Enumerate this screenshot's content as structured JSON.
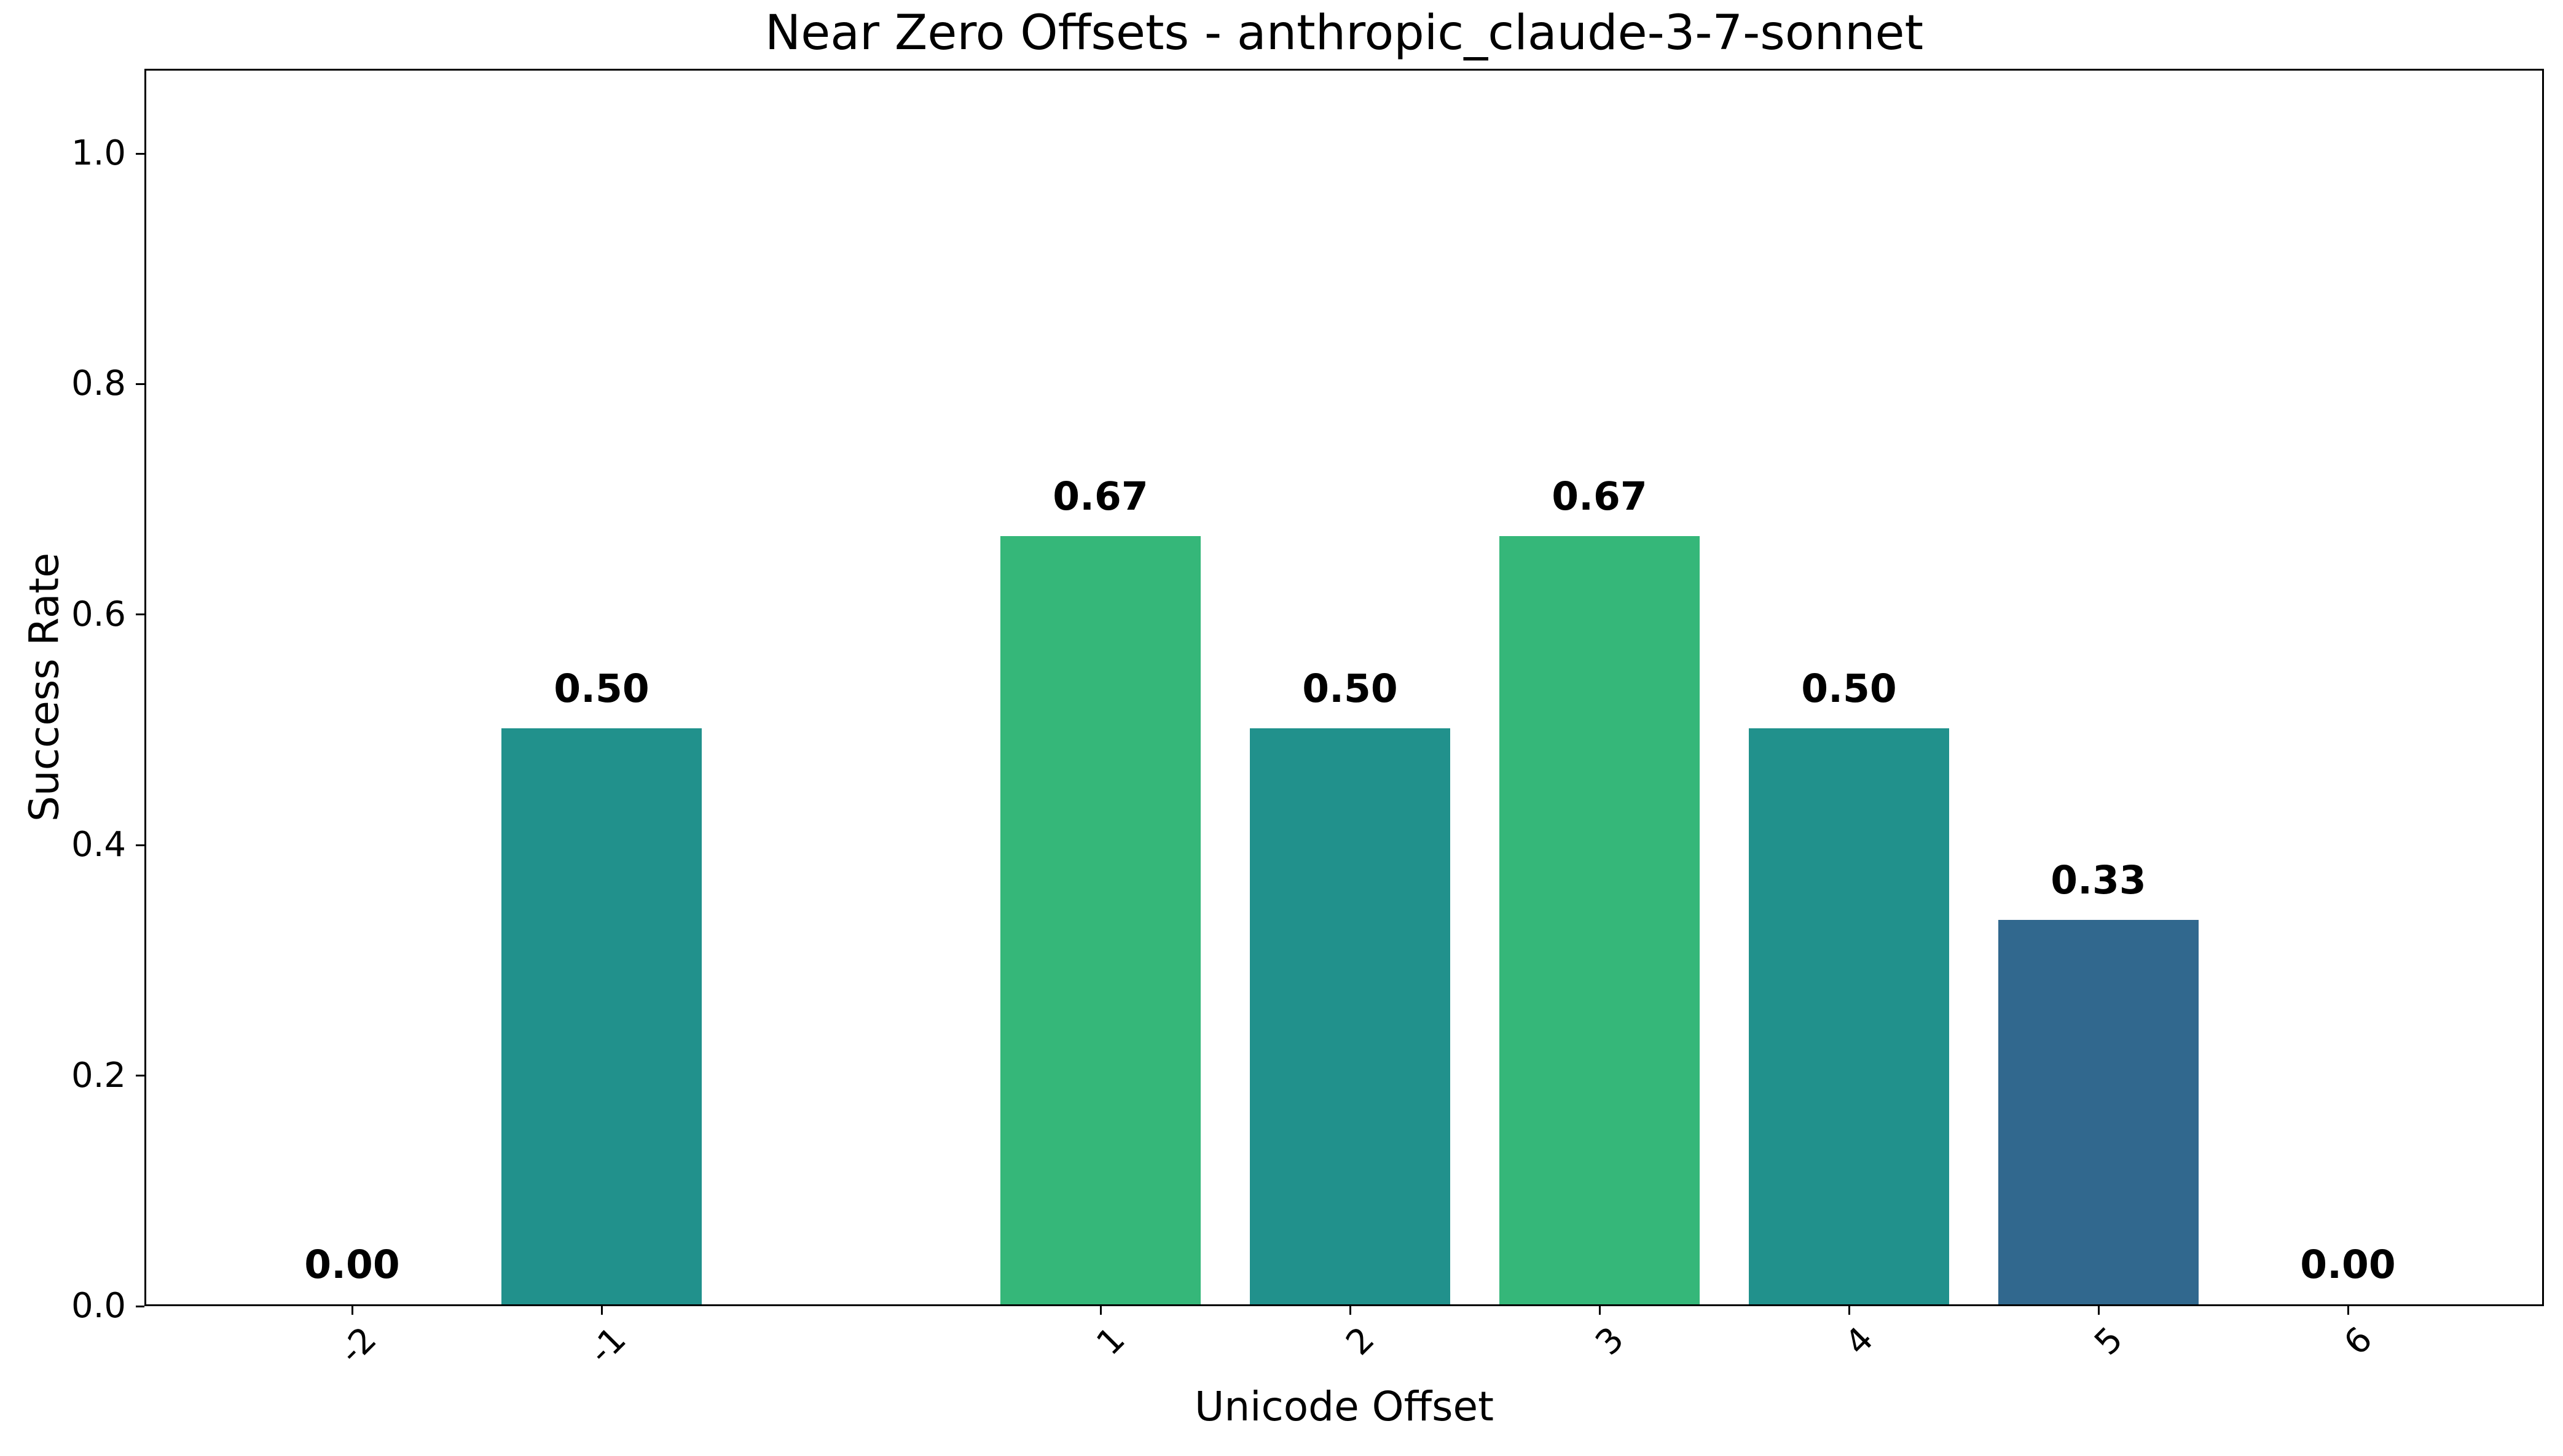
{
  "figure": {
    "background": "#ffffff",
    "spine_color": "#000000",
    "text_color": "#000000"
  },
  "chart_data": {
    "type": "bar",
    "title": "Near Zero Offsets - anthropic_claude-3-7-sonnet",
    "xlabel": "Unicode Offset",
    "ylabel": "Success Rate",
    "categories": [
      "-2",
      "-1",
      "1",
      "2",
      "3",
      "4",
      "5",
      "6"
    ],
    "x_positions": [
      -2,
      -1,
      1,
      2,
      3,
      4,
      5,
      6
    ],
    "values": [
      0.0,
      0.5,
      0.6667,
      0.5,
      0.6667,
      0.5,
      0.3333,
      0.0
    ],
    "bar_labels": [
      "0.00",
      "0.50",
      "0.67",
      "0.50",
      "0.67",
      "0.50",
      "0.33",
      "0.00"
    ],
    "bar_colors": [
      "none",
      "#21918c",
      "#35b779",
      "#21918c",
      "#35b779",
      "#21918c",
      "#31688e",
      "none"
    ],
    "ylim": [
      0.0,
      1.07
    ],
    "yticks": [
      0.0,
      0.2,
      0.4,
      0.6,
      0.8,
      1.0
    ],
    "ytick_labels": [
      "0.0",
      "0.2",
      "0.4",
      "0.6",
      "0.8",
      "1.0"
    ],
    "grid": false,
    "legend": "none",
    "xtick_rotation_deg": 45,
    "note_missing_slot": "no bar/tick at offset 0"
  }
}
